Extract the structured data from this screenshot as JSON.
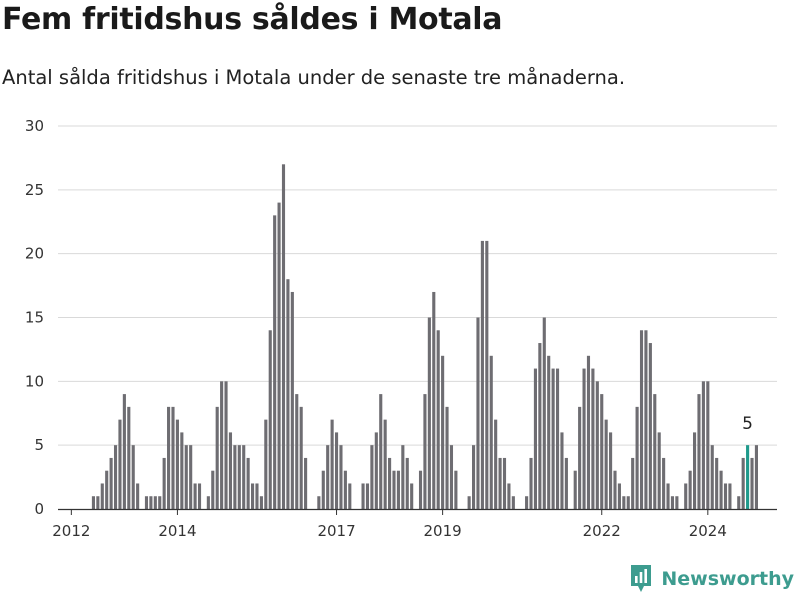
{
  "title": "Fem fritidshus såldes i Motala",
  "subtitle": "Antal sålda fritidshus i Motala under de senaste tre månaderna.",
  "brand": {
    "name": "Newsworthy",
    "icon": "newsworthy-logo-icon",
    "color": "#3d9c8f"
  },
  "colors": {
    "bar": "#6e6d72",
    "highlight": "#1f9a8c",
    "grid": "#d9d9d9",
    "axis": "#333333"
  },
  "chart_data": {
    "type": "bar",
    "x_start": "2011-11",
    "x_end": "2024-09",
    "ylim": [
      0,
      30
    ],
    "y_ticks": [
      0,
      5,
      10,
      15,
      20,
      25,
      30
    ],
    "x_ticks": [
      {
        "label": "2012",
        "month": "2012-01"
      },
      {
        "label": "2014",
        "month": "2014-01"
      },
      {
        "label": "2017",
        "month": "2017-01"
      },
      {
        "label": "2019",
        "month": "2019-01"
      },
      {
        "label": "2022",
        "month": "2022-01"
      },
      {
        "label": "2024",
        "month": "2024-01"
      }
    ],
    "grid": true,
    "legend": "none",
    "values": [
      0,
      0,
      0,
      0,
      0,
      0,
      0,
      1,
      1,
      2,
      3,
      4,
      5,
      7,
      9,
      8,
      5,
      2,
      0,
      1,
      1,
      1,
      1,
      4,
      8,
      8,
      7,
      6,
      5,
      5,
      2,
      2,
      0,
      1,
      3,
      8,
      10,
      10,
      6,
      5,
      5,
      5,
      4,
      2,
      2,
      1,
      7,
      14,
      23,
      24,
      27,
      18,
      17,
      9,
      8,
      4,
      0,
      0,
      1,
      3,
      5,
      7,
      6,
      5,
      3,
      2,
      0,
      0,
      2,
      2,
      5,
      6,
      9,
      7,
      4,
      3,
      3,
      5,
      4,
      2,
      0,
      3,
      9,
      15,
      17,
      14,
      12,
      8,
      5,
      3,
      0,
      0,
      1,
      5,
      15,
      21,
      21,
      12,
      7,
      4,
      4,
      2,
      1,
      0,
      0,
      1,
      4,
      11,
      13,
      15,
      12,
      11,
      11,
      6,
      4,
      0,
      3,
      8,
      11,
      12,
      11,
      10,
      9,
      7,
      6,
      3,
      2,
      1,
      1,
      4,
      8,
      14,
      14,
      13,
      9,
      6,
      4,
      2,
      1,
      1,
      0,
      2,
      3,
      6,
      9,
      10,
      10,
      5,
      4,
      3,
      2,
      2,
      0,
      1,
      4,
      5,
      4,
      5
    ],
    "highlight": {
      "index": 155,
      "value": 5,
      "label": "5"
    }
  }
}
